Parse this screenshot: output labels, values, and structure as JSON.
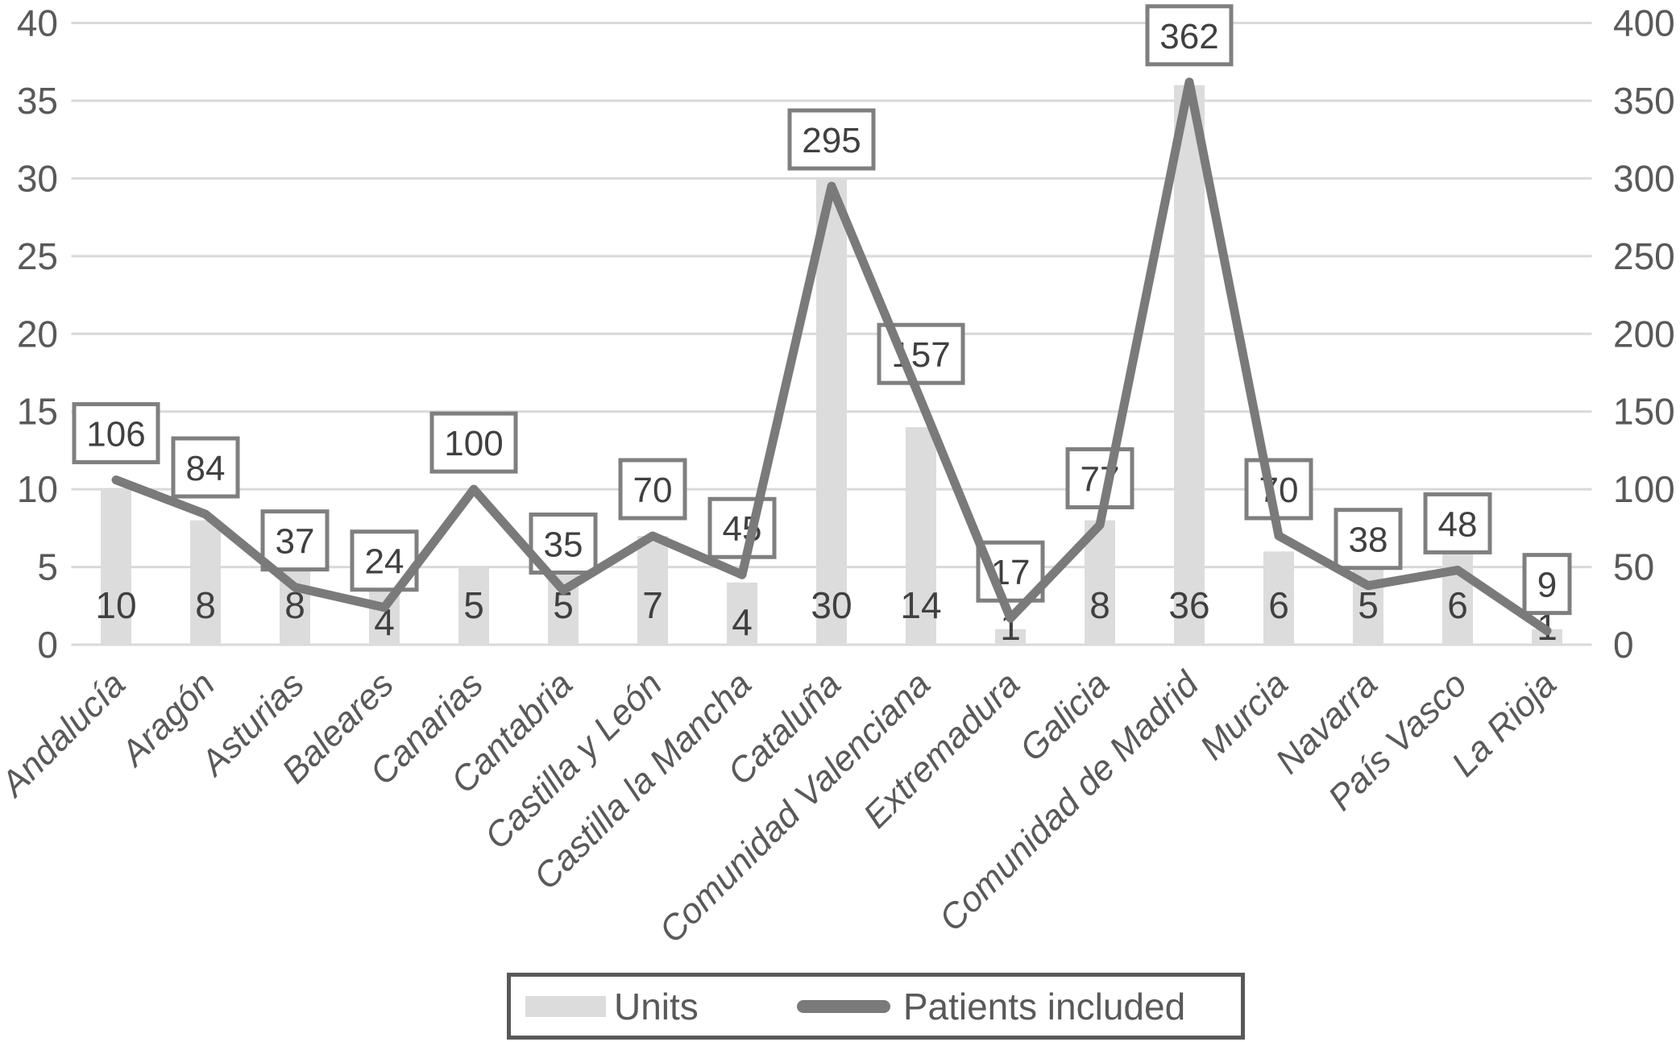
{
  "chart_data": {
    "type": "combo-bar-line",
    "title": "",
    "categories": [
      "Andalucía",
      "Aragón",
      "Asturias",
      "Baleares",
      "Canarias",
      "Cantabria",
      "Castilla y León",
      "Castilla la Mancha",
      "Cataluña",
      "Comunidad Valenciana",
      "Extremadura",
      "Galicia",
      "Comunidad de Madrid",
      "Murcia",
      "Navarra",
      "País Vasco",
      "La Rioja"
    ],
    "series": [
      {
        "name": "Units",
        "type": "bar",
        "axis": "left",
        "values": [
          10,
          8,
          8,
          4,
          5,
          5,
          7,
          4,
          30,
          14,
          1,
          8,
          36,
          6,
          5,
          6,
          1
        ]
      },
      {
        "name": "Patients included",
        "type": "line",
        "axis": "right",
        "values": [
          106,
          84,
          37,
          24,
          100,
          35,
          70,
          45,
          295,
          157,
          17,
          77,
          362,
          70,
          38,
          48,
          9
        ]
      }
    ],
    "left_axis": {
      "min": 0,
      "max": 40,
      "step": 5,
      "ticks": [
        "0",
        "5",
        "10",
        "15",
        "20",
        "25",
        "30",
        "35",
        "40"
      ]
    },
    "right_axis": {
      "min": 0,
      "max": 400,
      "step": 50,
      "ticks": [
        "0",
        "50",
        "100",
        "150",
        "200",
        "250",
        "300",
        "350",
        "400"
      ]
    },
    "grid": true,
    "legend_position": "bottom",
    "colors": {
      "background": "#ffffff",
      "bar": "#dcdcdc",
      "line": "#7a7a7a",
      "gridline": "#d9d9d9",
      "axis_text": "#595959",
      "category_text": "#595959",
      "bar_value_text": "#404040",
      "patients_value_text": "#404040",
      "value_box_fill": "#ffffff",
      "value_box_border": "#7f7f7f",
      "legend_border": "#595959"
    }
  }
}
